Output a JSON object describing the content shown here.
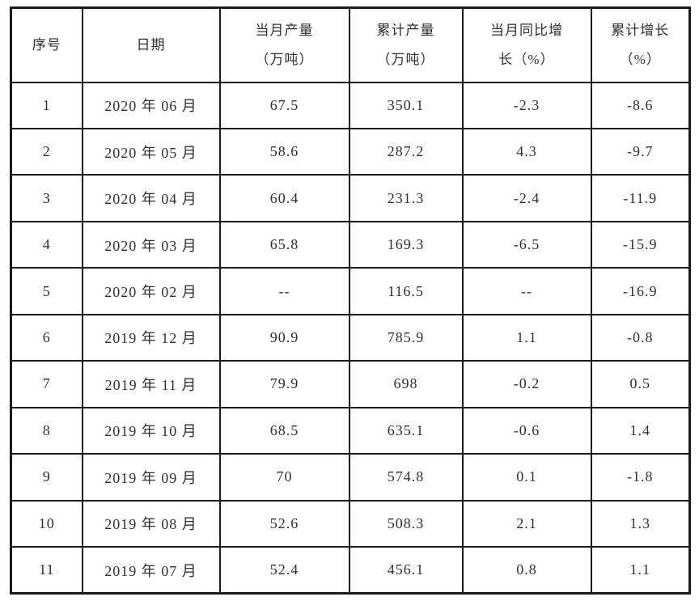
{
  "table": {
    "columns": [
      {
        "key": "seq",
        "label_lines": [
          "序号"
        ]
      },
      {
        "key": "date",
        "label_lines": [
          "日期"
        ]
      },
      {
        "key": "monthly_output",
        "label_lines": [
          "当月产量",
          "（万吨）"
        ]
      },
      {
        "key": "cumulative_output",
        "label_lines": [
          "累计产量",
          "（万吨）"
        ]
      },
      {
        "key": "monthly_yoy_growth",
        "label_lines": [
          "当月同比增",
          "长（%）"
        ]
      },
      {
        "key": "cumulative_growth",
        "label_lines": [
          "累计增长",
          "（%）"
        ]
      }
    ],
    "rows": [
      [
        "1",
        "2020 年 06 月",
        "67.5",
        "350.1",
        "-2.3",
        "-8.6"
      ],
      [
        "2",
        "2020 年 05 月",
        "58.6",
        "287.2",
        "4.3",
        "-9.7"
      ],
      [
        "3",
        "2020 年 04 月",
        "60.4",
        "231.3",
        "-2.4",
        "-11.9"
      ],
      [
        "4",
        "2020 年 03 月",
        "65.8",
        "169.3",
        "-6.5",
        "-15.9"
      ],
      [
        "5",
        "2020 年 02 月",
        "--",
        "116.5",
        "--",
        "-16.9"
      ],
      [
        "6",
        "2019 年 12 月",
        "90.9",
        "785.9",
        "1.1",
        "-0.8"
      ],
      [
        "7",
        "2019 年 11 月",
        "79.9",
        "698",
        "-0.2",
        "0.5"
      ],
      [
        "8",
        "2019 年 10 月",
        "68.5",
        "635.1",
        "-0.6",
        "1.4"
      ],
      [
        "9",
        "2019 年 09 月",
        "70",
        "574.8",
        "0.1",
        "-1.8"
      ],
      [
        "10",
        "2019 年 08 月",
        "52.6",
        "508.3",
        "2.1",
        "1.3"
      ],
      [
        "11",
        "2019 年 07 月",
        "52.4",
        "456.1",
        "0.8",
        "1.1"
      ]
    ],
    "colors": {
      "border": "#1b1b1b",
      "text": "#2f2f2f",
      "background": "#ffffff"
    }
  }
}
